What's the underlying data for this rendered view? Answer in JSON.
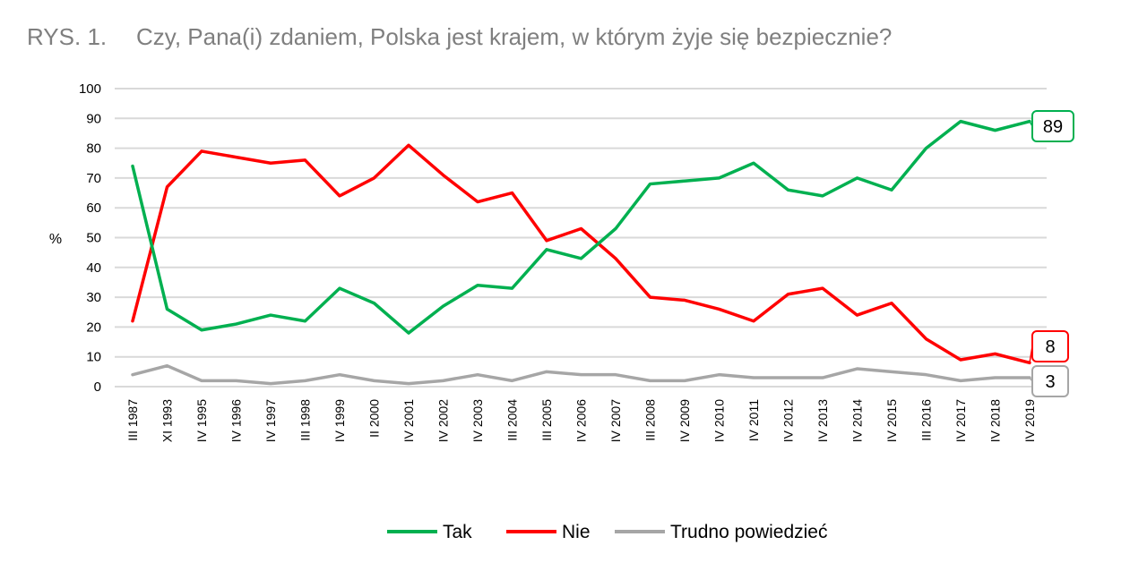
{
  "figure": {
    "number": "RYS. 1.",
    "question": "Czy, Pana(i) zdaniem, Polska jest krajem, w którym żyje się bezpiecznie?"
  },
  "chart_data": {
    "type": "line",
    "title": "Czy, Pana(i) zdaniem, Polska jest krajem, w którym żyje się bezpiecznie?",
    "xlabel": "",
    "ylabel": "%",
    "ylim": [
      0,
      100
    ],
    "yticks": [
      0,
      10,
      20,
      30,
      40,
      50,
      60,
      70,
      80,
      90,
      100
    ],
    "grid": "horizontal",
    "legend_position": "bottom",
    "categories": [
      "III 1987",
      "XI 1993",
      "IV 1995",
      "IV 1996",
      "IV 1997",
      "III 1998",
      "IV 1999",
      "II 2000",
      "IV 2001",
      "IV 2002",
      "IV 2003",
      "III 2004",
      "III 2005",
      "IV 2006",
      "IV 2007",
      "III 2008",
      "IV 2009",
      "IV 2010",
      "IV 2011",
      "IV 2012",
      "IV 2013",
      "IV 2014",
      "IV 2015",
      "III 2016",
      "IV 2017",
      "IV 2018",
      "IV 2019"
    ],
    "series": [
      {
        "name": "Tak",
        "color": "#00b050",
        "values": [
          74,
          26,
          19,
          21,
          24,
          22,
          33,
          28,
          18,
          27,
          34,
          33,
          46,
          43,
          53,
          68,
          69,
          70,
          75,
          66,
          64,
          70,
          66,
          80,
          89,
          86,
          89
        ],
        "end_label": "89"
      },
      {
        "name": "Nie",
        "color": "#ff0000",
        "values": [
          22,
          67,
          79,
          77,
          75,
          76,
          64,
          70,
          81,
          71,
          62,
          65,
          49,
          53,
          43,
          30,
          29,
          26,
          22,
          31,
          33,
          24,
          28,
          16,
          9,
          11,
          8
        ],
        "end_label": "8"
      },
      {
        "name": "Trudno powiedzieć",
        "color": "#a6a6a6",
        "values": [
          4,
          7,
          2,
          2,
          1,
          2,
          4,
          2,
          1,
          2,
          4,
          2,
          5,
          4,
          4,
          2,
          2,
          4,
          3,
          3,
          3,
          6,
          5,
          4,
          2,
          3,
          3
        ],
        "end_label": "3"
      }
    ]
  }
}
